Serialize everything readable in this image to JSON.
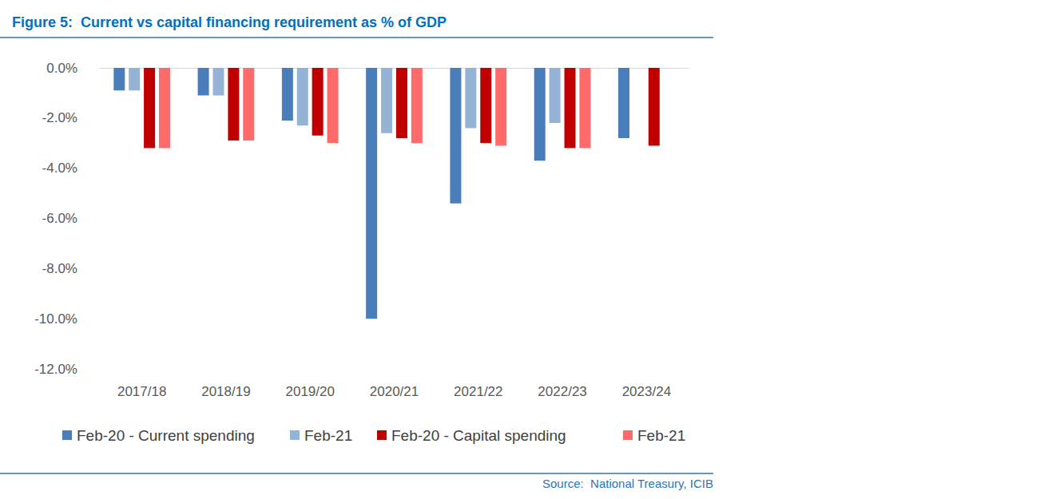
{
  "chart_data": {
    "type": "bar",
    "title": "Figure 5:  Current vs capital financing requirement as % of GDP",
    "source": "Source:  National Treasury, ICIB",
    "categories": [
      "2017/18",
      "2018/19",
      "2019/20",
      "2020/21",
      "2021/22",
      "2022/23",
      "2023/24"
    ],
    "series": [
      {
        "name": "Feb-20 - Current spending",
        "color": "#4a7ebb",
        "values": [
          -0.9,
          -1.1,
          -2.1,
          -10.0,
          -5.4,
          -3.7,
          -2.8
        ]
      },
      {
        "name": "Feb-21",
        "color": "#95b3d7",
        "values": [
          -0.9,
          -1.1,
          -2.3,
          -2.6,
          -2.4,
          -2.2,
          null
        ]
      },
      {
        "name": "Feb-20 - Capital spending",
        "color": "#c00000",
        "values": [
          -3.2,
          -2.9,
          -2.7,
          -2.8,
          -3.0,
          -3.2,
          -3.1
        ]
      },
      {
        "name": "Feb-21",
        "color": "#ff6b6b",
        "values": [
          -3.2,
          -2.9,
          -3.0,
          -3.0,
          -3.1,
          -3.2,
          null
        ]
      }
    ],
    "ylim": [
      -12,
      0
    ],
    "yticks": [
      {
        "value": -12,
        "label": "-12.0%"
      },
      {
        "value": -10,
        "label": "-10.0%"
      },
      {
        "value": -8,
        "label": "-8.0%"
      },
      {
        "value": -6,
        "label": "-6.0%"
      },
      {
        "value": -4,
        "label": "-4.0%"
      },
      {
        "value": -2,
        "label": "-2.0%"
      },
      {
        "value": 0,
        "label": "0.0%"
      }
    ],
    "grid": false,
    "legend": "bottom"
  }
}
